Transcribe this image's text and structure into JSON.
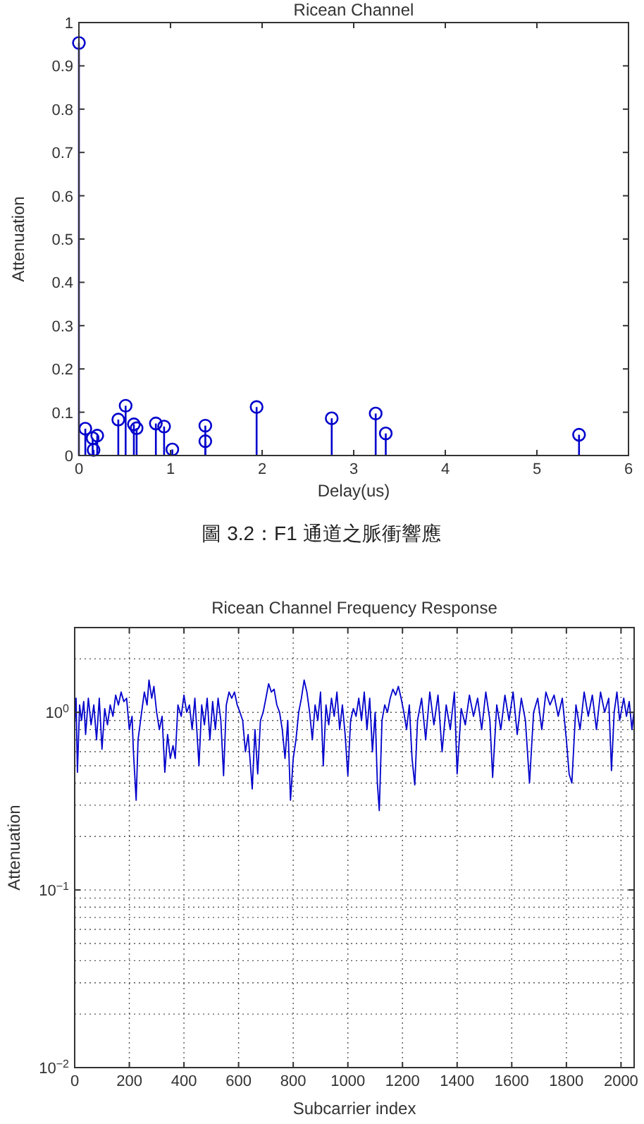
{
  "chart_data": [
    {
      "type": "lollipop",
      "title": "Ricean Channel",
      "xlabel": "Delay(us)",
      "ylabel": "Attenuation",
      "color": "#0000cc",
      "marker": "circle",
      "x": [
        0,
        0.07,
        0.15,
        0.16,
        0.2,
        0.43,
        0.51,
        0.6,
        0.63,
        0.84,
        0.93,
        1.02,
        1.38,
        1.38,
        1.94,
        2.76,
        3.24,
        3.35,
        5.46
      ],
      "values": [
        0.953,
        0.062,
        0.04,
        0.013,
        0.046,
        0.083,
        0.115,
        0.072,
        0.063,
        0.074,
        0.067,
        0.014,
        0.069,
        0.033,
        0.112,
        0.086,
        0.097,
        0.051,
        0.048
      ],
      "xlim": [
        0,
        6
      ],
      "ylim": [
        0,
        1
      ],
      "xticks": [
        0,
        1,
        2,
        3,
        4,
        5,
        6
      ],
      "yticks": [
        0,
        0.1,
        0.2,
        0.3,
        0.4,
        0.5,
        0.6,
        0.7,
        0.8,
        0.9,
        1
      ],
      "annotations": [
        "圖 3.2：F1 通道之脈衝響應"
      ]
    },
    {
      "type": "line",
      "title": "Ricean Channel Frequency Response",
      "xlabel": "Subcarrier index",
      "ylabel": "Attenuation",
      "color": "#0000cc",
      "log": "y",
      "grid": true,
      "line_style": "solid",
      "x": [
        0,
        5,
        10,
        18,
        25,
        33,
        40,
        50,
        60,
        70,
        80,
        90,
        100,
        110,
        120,
        130,
        140,
        150,
        160,
        170,
        180,
        190,
        200,
        210,
        215,
        225,
        232,
        245,
        255,
        265,
        272,
        282,
        290,
        300,
        310,
        320,
        330,
        340,
        350,
        360,
        368,
        378,
        390,
        400,
        410,
        420,
        430,
        440,
        455,
        465,
        475,
        485,
        495,
        505,
        515,
        525,
        535,
        545,
        555,
        565,
        575,
        585,
        595,
        605,
        615,
        625,
        635,
        650,
        660,
        670,
        680,
        690,
        700,
        710,
        720,
        730,
        740,
        750,
        760,
        770,
        780,
        790,
        800,
        810,
        820,
        830,
        840,
        850,
        860,
        870,
        880,
        890,
        900,
        910,
        920,
        930,
        940,
        950,
        960,
        970,
        980,
        990,
        1000,
        1010,
        1020,
        1030,
        1040,
        1050,
        1060,
        1070,
        1080,
        1090,
        1100,
        1108,
        1115,
        1125,
        1135,
        1145,
        1155,
        1165,
        1175,
        1185,
        1195,
        1205,
        1215,
        1225,
        1235,
        1245,
        1255,
        1270,
        1285,
        1300,
        1315,
        1330,
        1345,
        1360,
        1375,
        1390,
        1400,
        1415,
        1430,
        1445,
        1460,
        1475,
        1490,
        1505,
        1520,
        1530,
        1545,
        1560,
        1575,
        1590,
        1605,
        1620,
        1635,
        1650,
        1665,
        1680,
        1695,
        1710,
        1725,
        1740,
        1755,
        1770,
        1785,
        1800,
        1810,
        1820,
        1835,
        1850,
        1865,
        1880,
        1895,
        1910,
        1925,
        1940,
        1955,
        1965,
        1975,
        1985,
        1995,
        2010,
        2020,
        2030,
        2040,
        2047
      ],
      "values": [
        0.85,
        1.2,
        0.46,
        1.1,
        0.9,
        1.15,
        0.75,
        1.2,
        0.85,
        1.1,
        0.7,
        1.2,
        0.62,
        1.05,
        0.85,
        1.1,
        0.95,
        1.25,
        1.1,
        1.3,
        1.15,
        1.2,
        0.8,
        0.95,
        0.6,
        0.32,
        0.7,
        1.0,
        1.3,
        1.1,
        1.52,
        1.2,
        1.4,
        1.0,
        0.8,
        0.95,
        0.46,
        0.75,
        0.55,
        0.65,
        0.55,
        1.1,
        0.95,
        1.25,
        1.0,
        1.1,
        0.8,
        1.2,
        0.5,
        1.1,
        0.85,
        1.2,
        0.7,
        1.15,
        0.8,
        1.2,
        0.9,
        0.44,
        1.1,
        1.3,
        1.2,
        1.3,
        1.1,
        1.0,
        0.9,
        0.6,
        0.75,
        0.37,
        0.8,
        0.45,
        0.9,
        1.0,
        1.2,
        1.45,
        1.3,
        1.35,
        1.1,
        1.0,
        0.8,
        0.55,
        0.9,
        0.32,
        0.55,
        0.7,
        1.0,
        1.2,
        1.52,
        1.3,
        1.0,
        0.7,
        1.1,
        0.9,
        1.3,
        0.5,
        1.1,
        0.85,
        1.2,
        0.95,
        1.3,
        0.8,
        1.1,
        0.75,
        0.44,
        0.9,
        1.05,
        0.95,
        1.2,
        0.9,
        1.3,
        0.8,
        1.2,
        0.6,
        1.0,
        0.4,
        0.28,
        0.9,
        1.1,
        1.0,
        1.2,
        1.35,
        1.25,
        1.4,
        1.2,
        1.0,
        0.8,
        1.1,
        0.55,
        0.39,
        0.9,
        1.2,
        0.7,
        1.3,
        0.85,
        1.25,
        0.6,
        1.1,
        0.8,
        1.3,
        0.45,
        1.05,
        0.85,
        1.25,
        0.95,
        1.2,
        0.8,
        1.3,
        0.9,
        0.43,
        1.1,
        0.8,
        1.25,
        0.9,
        1.3,
        0.75,
        1.2,
        0.9,
        0.4,
        1.0,
        1.2,
        0.8,
        1.3,
        1.1,
        1.25,
        0.95,
        1.2,
        0.7,
        0.45,
        0.4,
        1.1,
        0.8,
        1.3,
        0.95,
        1.25,
        0.8,
        1.3,
        1.0,
        1.2,
        0.47,
        1.0,
        1.3,
        0.9,
        1.2,
        0.95,
        1.15,
        0.8,
        1.0
      ],
      "xlim": [
        0,
        2048
      ],
      "ylim": [
        0.01,
        3
      ],
      "xticks": [
        0,
        200,
        400,
        600,
        800,
        1000,
        1200,
        1400,
        1600,
        1800,
        2000
      ],
      "yticks": [
        {
          "value": 0.01,
          "label": "10$^{−2}$"
        },
        {
          "value": 0.1,
          "label": "10$^{−1}$"
        },
        {
          "value": 1,
          "label": "10$^{0}$"
        }
      ]
    }
  ]
}
